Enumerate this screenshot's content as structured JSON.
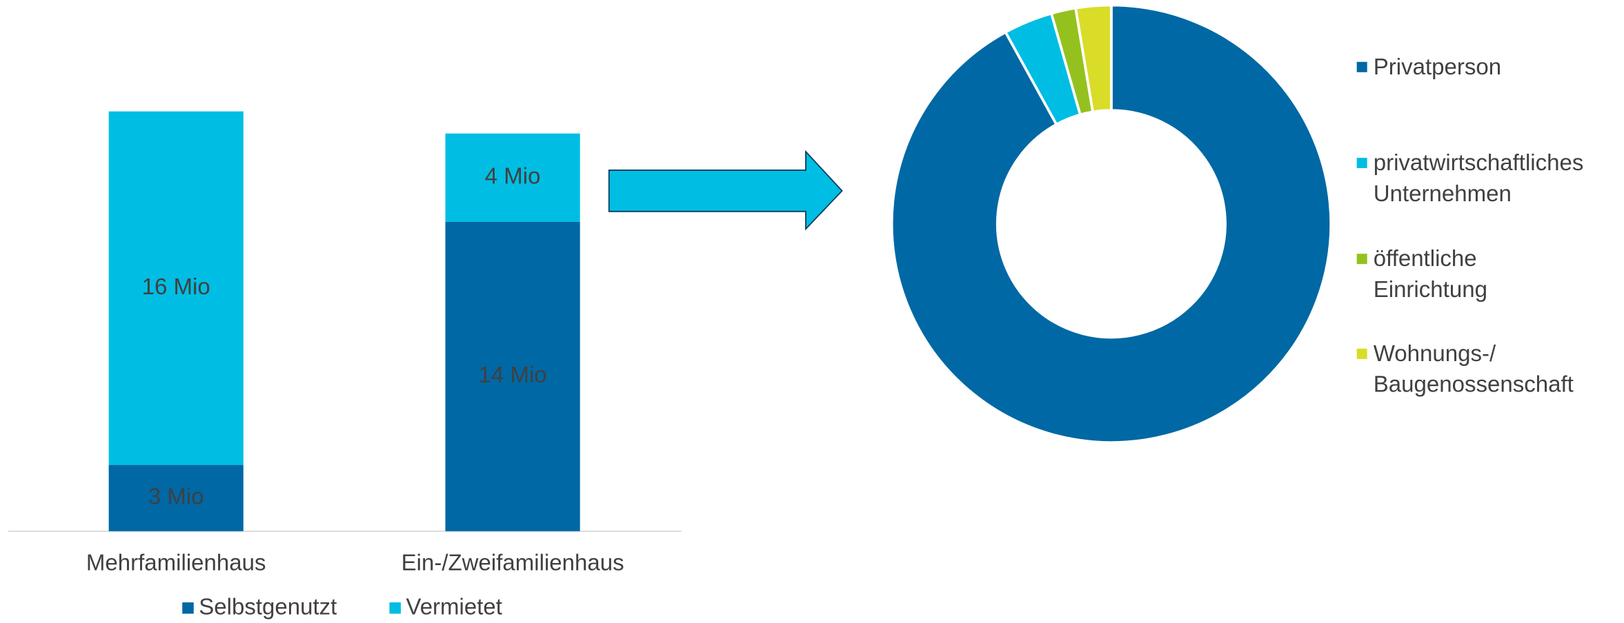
{
  "chart_data": [
    {
      "type": "bar",
      "stacked": true,
      "categories": [
        "Mehrfamilienhaus",
        "Ein-/Zweifamilienhaus"
      ],
      "series": [
        {
          "name": "Selbstgenutzt",
          "color": "#0068a4",
          "values": [
            3,
            14
          ],
          "value_labels": [
            "3 Mio",
            "14 Mio"
          ]
        },
        {
          "name": "Vermietet",
          "color": "#00bde3",
          "values": [
            16,
            4
          ],
          "value_labels": [
            "16 Mio",
            "4 Mio"
          ]
        }
      ]
    },
    {
      "type": "donut",
      "labels": [
        "Privatperson",
        "privatwirtschaftliches\nUnternehmen",
        "öffentliche\nEinrichtung",
        "Wohnungs-/\nBaugenossenschaft"
      ],
      "values": [
        92,
        3.6,
        1.8,
        2.6
      ],
      "colors": [
        "#0068a4",
        "#00bde3",
        "#95c11f",
        "#d9dd27"
      ]
    }
  ]
}
